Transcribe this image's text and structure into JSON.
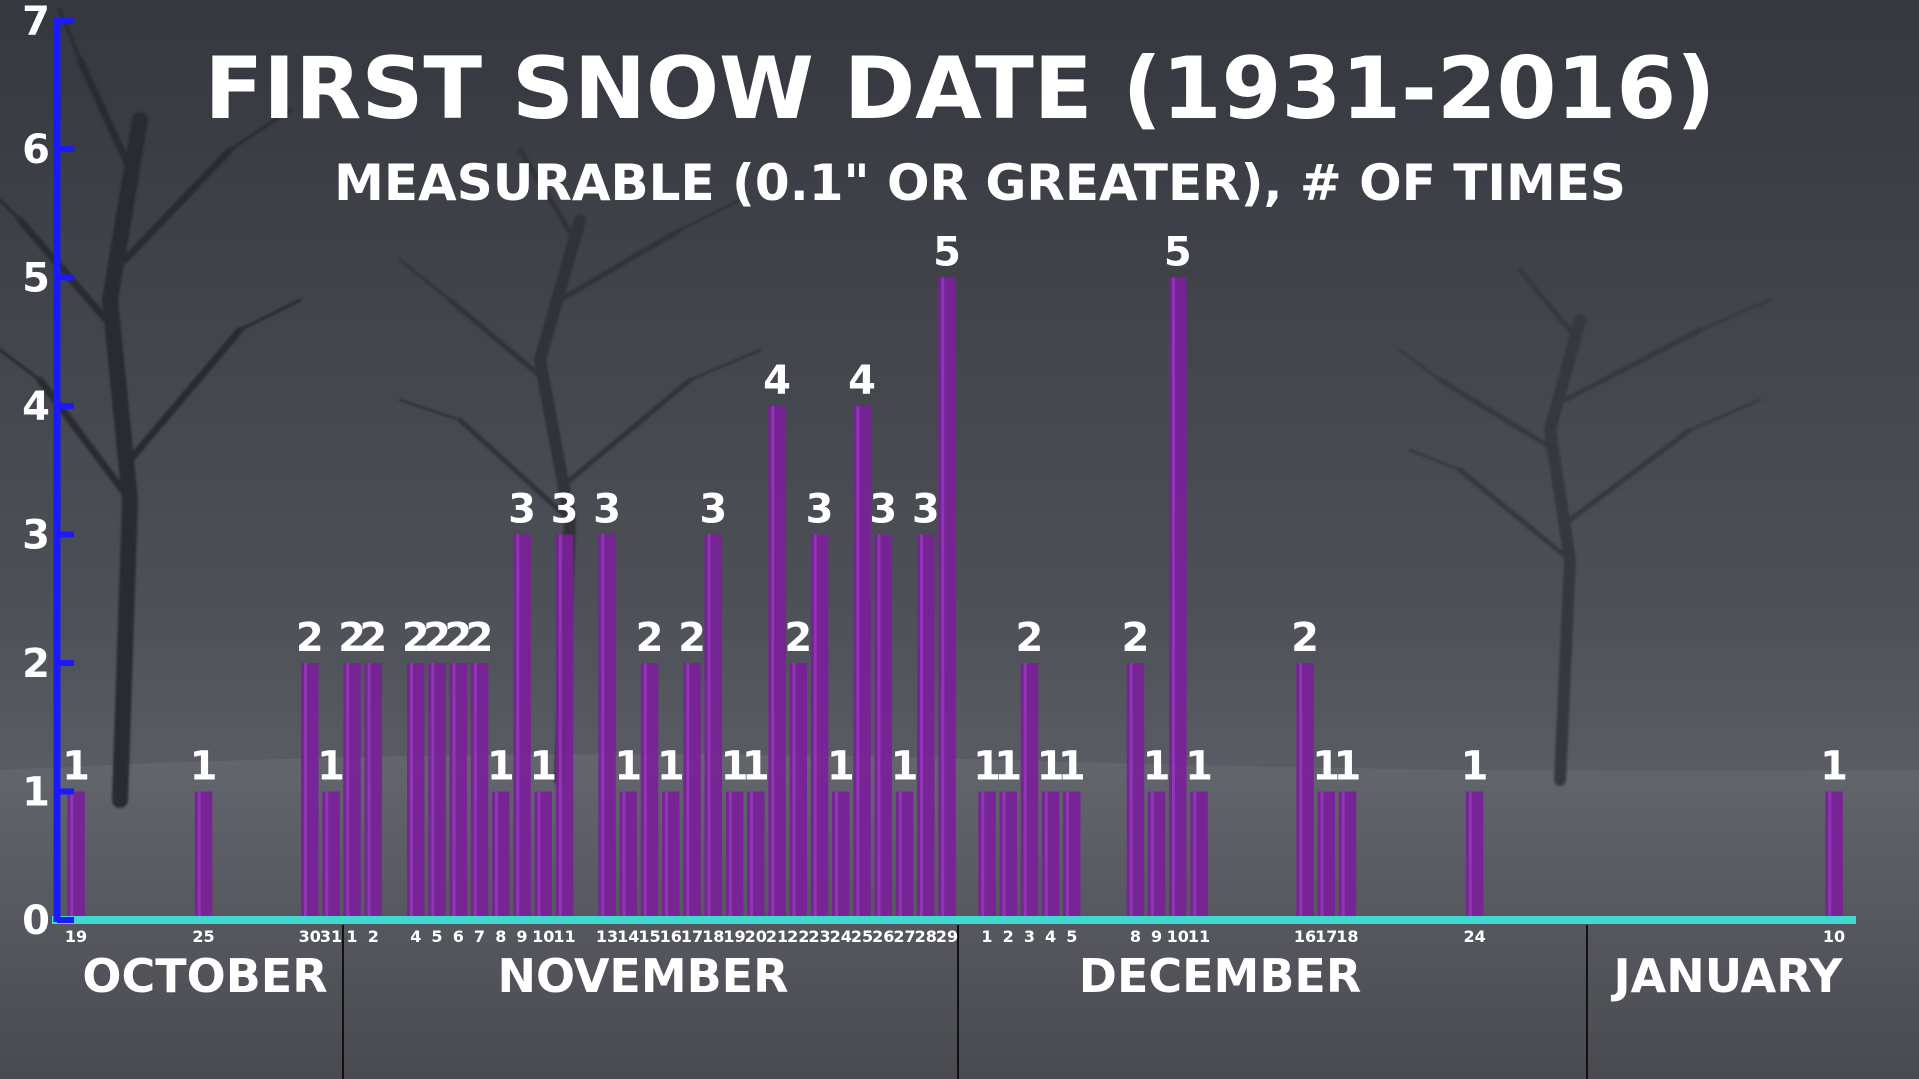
{
  "colors": {
    "bar": "#7a1f9a",
    "bar_highlight": "#9b3fbf",
    "y_axis": "#1a1aff",
    "x_axis": "#3fd9d0",
    "text": "#ffffff"
  },
  "chart_data": {
    "type": "bar",
    "title": "FIRST SNOW DATE (1931-2016)",
    "subtitle": "MEASURABLE (0.1\" OR GREATER), # OF TIMES",
    "xlabel": "",
    "ylabel": "",
    "ylim": [
      0,
      7
    ],
    "yticks": [
      "0",
      "1",
      "2",
      "3",
      "4",
      "5",
      "6",
      "7"
    ],
    "grid": false,
    "legend": "none",
    "months": [
      "OCTOBER",
      "NOVEMBER",
      "DECEMBER",
      "JANUARY"
    ],
    "bars": [
      {
        "month": "OCTOBER",
        "day": "19",
        "value": 1
      },
      {
        "month": "OCTOBER",
        "day": "25",
        "value": 1
      },
      {
        "month": "OCTOBER",
        "day": "30",
        "value": 2
      },
      {
        "month": "OCTOBER",
        "day": "31",
        "value": 1
      },
      {
        "month": "NOVEMBER",
        "day": "1",
        "value": 2
      },
      {
        "month": "NOVEMBER",
        "day": "2",
        "value": 2
      },
      {
        "month": "NOVEMBER",
        "day": "4",
        "value": 2
      },
      {
        "month": "NOVEMBER",
        "day": "5",
        "value": 2
      },
      {
        "month": "NOVEMBER",
        "day": "6",
        "value": 2
      },
      {
        "month": "NOVEMBER",
        "day": "7",
        "value": 2
      },
      {
        "month": "NOVEMBER",
        "day": "8",
        "value": 1
      },
      {
        "month": "NOVEMBER",
        "day": "9",
        "value": 3
      },
      {
        "month": "NOVEMBER",
        "day": "10",
        "value": 1
      },
      {
        "month": "NOVEMBER",
        "day": "11",
        "value": 3
      },
      {
        "month": "NOVEMBER",
        "day": "13",
        "value": 3
      },
      {
        "month": "NOVEMBER",
        "day": "14",
        "value": 1
      },
      {
        "month": "NOVEMBER",
        "day": "15",
        "value": 2
      },
      {
        "month": "NOVEMBER",
        "day": "16",
        "value": 1
      },
      {
        "month": "NOVEMBER",
        "day": "17",
        "value": 2
      },
      {
        "month": "NOVEMBER",
        "day": "18",
        "value": 3
      },
      {
        "month": "NOVEMBER",
        "day": "19",
        "value": 1
      },
      {
        "month": "NOVEMBER",
        "day": "20",
        "value": 1
      },
      {
        "month": "NOVEMBER",
        "day": "21",
        "value": 4
      },
      {
        "month": "NOVEMBER",
        "day": "22",
        "value": 2
      },
      {
        "month": "NOVEMBER",
        "day": "23",
        "value": 3
      },
      {
        "month": "NOVEMBER",
        "day": "24",
        "value": 1
      },
      {
        "month": "NOVEMBER",
        "day": "25",
        "value": 4
      },
      {
        "month": "NOVEMBER",
        "day": "26",
        "value": 3
      },
      {
        "month": "NOVEMBER",
        "day": "27",
        "value": 1
      },
      {
        "month": "NOVEMBER",
        "day": "28",
        "value": 3
      },
      {
        "month": "NOVEMBER",
        "day": "29",
        "value": 5
      },
      {
        "month": "DECEMBER",
        "day": "1",
        "value": 1
      },
      {
        "month": "DECEMBER",
        "day": "2",
        "value": 1
      },
      {
        "month": "DECEMBER",
        "day": "3",
        "value": 2
      },
      {
        "month": "DECEMBER",
        "day": "4",
        "value": 1
      },
      {
        "month": "DECEMBER",
        "day": "5",
        "value": 1
      },
      {
        "month": "DECEMBER",
        "day": "8",
        "value": 2
      },
      {
        "month": "DECEMBER",
        "day": "9",
        "value": 1
      },
      {
        "month": "DECEMBER",
        "day": "10",
        "value": 5
      },
      {
        "month": "DECEMBER",
        "day": "11",
        "value": 1
      },
      {
        "month": "DECEMBER",
        "day": "16",
        "value": 2
      },
      {
        "month": "DECEMBER",
        "day": "17",
        "value": 1
      },
      {
        "month": "DECEMBER",
        "day": "18",
        "value": 1
      },
      {
        "month": "DECEMBER",
        "day": "24",
        "value": 1
      },
      {
        "month": "JANUARY",
        "day": "10",
        "value": 1
      }
    ]
  }
}
